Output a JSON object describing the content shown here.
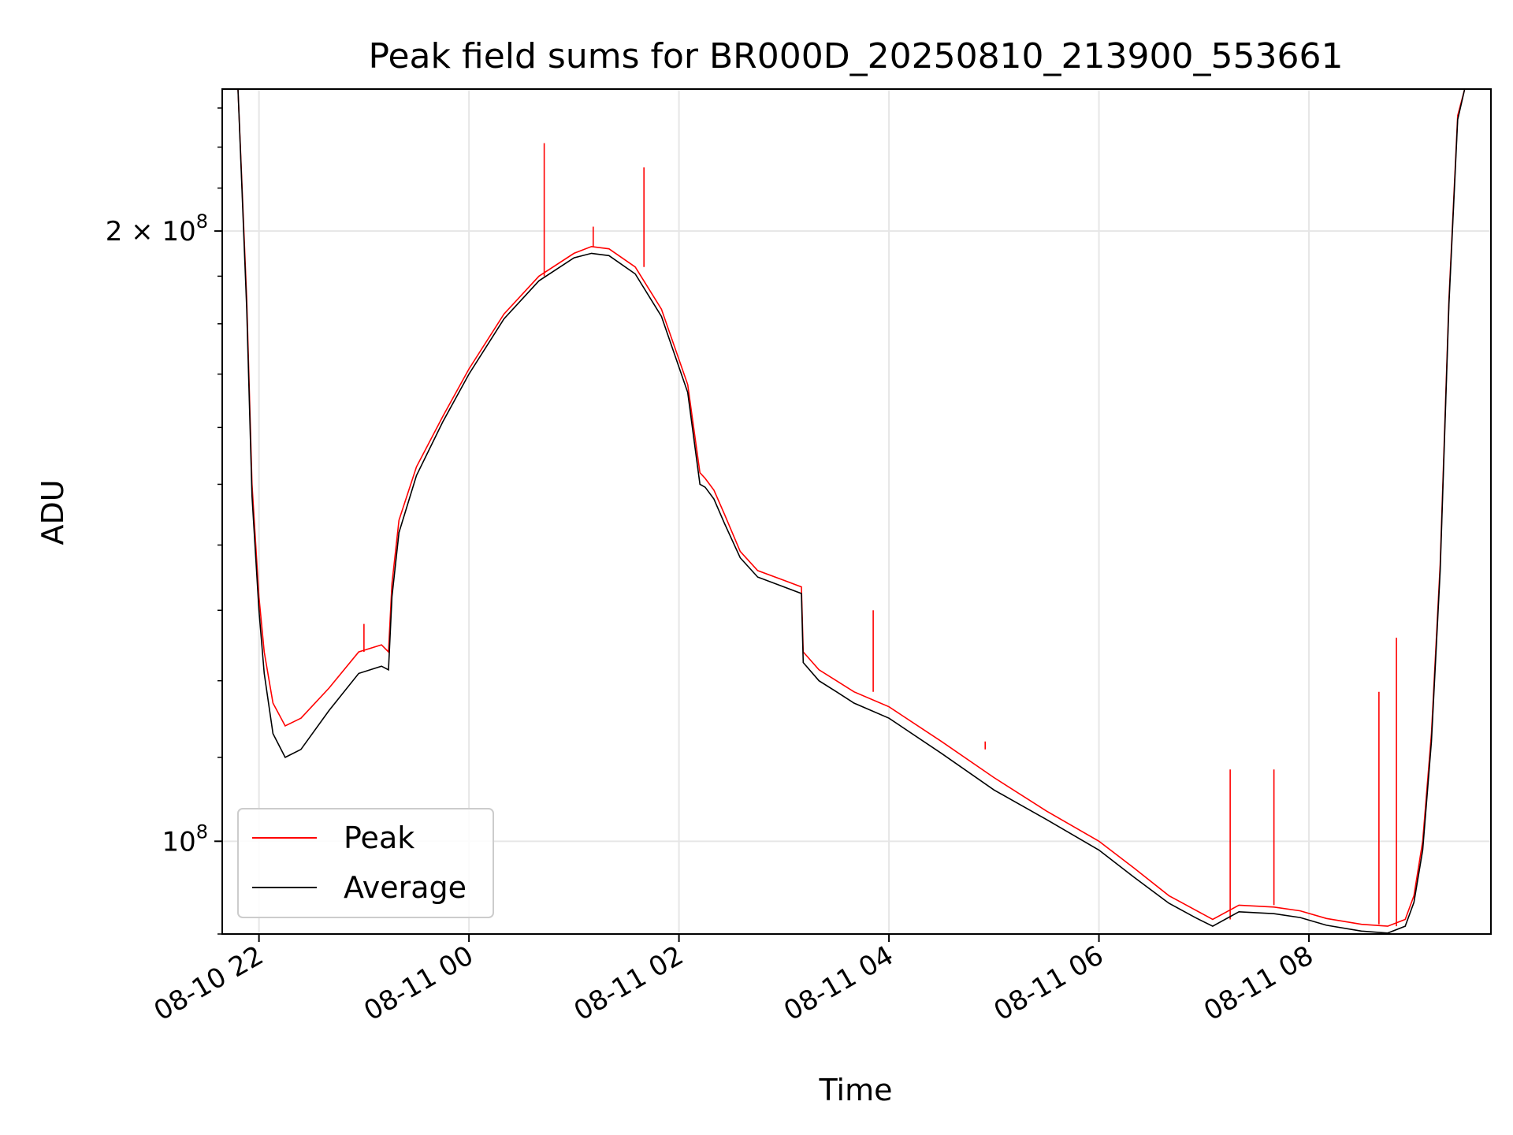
{
  "chart_data": {
    "type": "line",
    "title": "Peak field sums for BR000D_20250810_213900_553661",
    "xlabel": "Time",
    "ylabel": "ADU",
    "yscale": "log",
    "grid": true,
    "legend_position": "lower-left",
    "xlim": [
      "2025-08-10 21:39",
      "2025-08-11 09:44"
    ],
    "ylim": [
      90000000,
      235000000
    ],
    "x_ticks": [
      {
        "label": "08-10 22",
        "value": "2025-08-10 22:00"
      },
      {
        "label": "08-11 00",
        "value": "2025-08-11 00:00"
      },
      {
        "label": "08-11 02",
        "value": "2025-08-11 02:00"
      },
      {
        "label": "08-11 04",
        "value": "2025-08-11 04:00"
      },
      {
        "label": "08-11 06",
        "value": "2025-08-11 06:00"
      },
      {
        "label": "08-11 08",
        "value": "2025-08-11 08:00"
      }
    ],
    "y_ticks": [
      {
        "mantissa": "",
        "exponent": "8",
        "value": 100000000
      },
      {
        "mantissa": "2 × 10",
        "exponent": "8",
        "value": 200000000
      }
    ],
    "series": [
      {
        "name": "Peak",
        "color": "#ff0000",
        "x": [
          "2025-08-10 21:39",
          "2025-08-10 21:48",
          "2025-08-10 21:53",
          "2025-08-10 21:56",
          "2025-08-10 22:00",
          "2025-08-10 22:03",
          "2025-08-10 22:08",
          "2025-08-10 22:15",
          "2025-08-10 22:24",
          "2025-08-10 22:40",
          "2025-08-10 22:57",
          "2025-08-10 23:10",
          "2025-08-10 23:14",
          "2025-08-10 23:16",
          "2025-08-10 23:20",
          "2025-08-10 23:30",
          "2025-08-10 23:45",
          "2025-08-11 00:00",
          "2025-08-11 00:20",
          "2025-08-11 00:40",
          "2025-08-11 01:00",
          "2025-08-11 01:10",
          "2025-08-11 01:20",
          "2025-08-11 01:35",
          "2025-08-11 01:50",
          "2025-08-11 02:05",
          "2025-08-11 02:12",
          "2025-08-11 02:15",
          "2025-08-11 02:20",
          "2025-08-11 02:26",
          "2025-08-11 02:35",
          "2025-08-11 02:45",
          "2025-08-11 03:00",
          "2025-08-11 03:10",
          "2025-08-11 03:11",
          "2025-08-11 03:20",
          "2025-08-11 03:30",
          "2025-08-11 03:40",
          "2025-08-11 04:00",
          "2025-08-11 04:30",
          "2025-08-11 05:00",
          "2025-08-11 05:30",
          "2025-08-11 06:00",
          "2025-08-11 06:20",
          "2025-08-11 06:40",
          "2025-08-11 06:55",
          "2025-08-11 07:05",
          "2025-08-11 07:20",
          "2025-08-11 07:40",
          "2025-08-11 07:55",
          "2025-08-11 08:10",
          "2025-08-11 08:30",
          "2025-08-11 08:45",
          "2025-08-11 08:55",
          "2025-08-11 09:00",
          "2025-08-11 09:05",
          "2025-08-11 09:10",
          "2025-08-11 09:15",
          "2025-08-11 09:20",
          "2025-08-11 09:25",
          "2025-08-11 09:29",
          "2025-08-11 09:35",
          "2025-08-11 09:44"
        ],
        "y": [
          235000000,
          235000000,
          185000000,
          150000000,
          132000000,
          124000000,
          117000000,
          114000000,
          115000000,
          119000000,
          124000000,
          125000000,
          124000000,
          134000000,
          144000000,
          153000000,
          162000000,
          171000000,
          182000000,
          190000000,
          195000000,
          196500000,
          196000000,
          192000000,
          183000000,
          168000000,
          152000000,
          151000000,
          149000000,
          145000000,
          139000000,
          136000000,
          134500000,
          133500000,
          124000000,
          121500000,
          120000000,
          118500000,
          116500000,
          112000000,
          107500000,
          103500000,
          100000000,
          97000000,
          94000000,
          92500000,
          91500000,
          93000000,
          92800000,
          92400000,
          91600000,
          91000000,
          90800000,
          91500000,
          94000000,
          100000000,
          113000000,
          137000000,
          185000000,
          228000000,
          235000000,
          235000000,
          235000000
        ],
        "spikes": [
          {
            "x": "2025-08-11 00:43",
            "y": 221000000
          },
          {
            "x": "2025-08-11 01:11",
            "y": 201000000
          },
          {
            "x": "2025-08-11 01:40",
            "y": 215000000
          },
          {
            "x": "2025-08-10 23:00",
            "y": 128000000
          },
          {
            "x": "2025-08-11 03:51",
            "y": 130000000
          },
          {
            "x": "2025-08-11 04:55",
            "y": 111000000
          },
          {
            "x": "2025-08-11 07:15",
            "y": 108500000
          },
          {
            "x": "2025-08-11 07:40",
            "y": 108500000
          },
          {
            "x": "2025-08-11 08:40",
            "y": 118500000
          },
          {
            "x": "2025-08-11 08:50",
            "y": 126000000
          }
        ]
      },
      {
        "name": "Average",
        "color": "#000000",
        "x": [
          "2025-08-10 21:39",
          "2025-08-10 21:48",
          "2025-08-10 21:53",
          "2025-08-10 21:56",
          "2025-08-10 22:00",
          "2025-08-10 22:03",
          "2025-08-10 22:08",
          "2025-08-10 22:15",
          "2025-08-10 22:24",
          "2025-08-10 22:40",
          "2025-08-10 22:57",
          "2025-08-10 23:10",
          "2025-08-10 23:14",
          "2025-08-10 23:16",
          "2025-08-10 23:20",
          "2025-08-10 23:30",
          "2025-08-10 23:45",
          "2025-08-11 00:00",
          "2025-08-11 00:20",
          "2025-08-11 00:40",
          "2025-08-11 01:00",
          "2025-08-11 01:10",
          "2025-08-11 01:20",
          "2025-08-11 01:35",
          "2025-08-11 01:50",
          "2025-08-11 02:05",
          "2025-08-11 02:12",
          "2025-08-11 02:15",
          "2025-08-11 02:20",
          "2025-08-11 02:26",
          "2025-08-11 02:35",
          "2025-08-11 02:45",
          "2025-08-11 03:00",
          "2025-08-11 03:10",
          "2025-08-11 03:11",
          "2025-08-11 03:20",
          "2025-08-11 03:30",
          "2025-08-11 03:40",
          "2025-08-11 04:00",
          "2025-08-11 04:30",
          "2025-08-11 05:00",
          "2025-08-11 05:30",
          "2025-08-11 06:00",
          "2025-08-11 06:20",
          "2025-08-11 06:40",
          "2025-08-11 06:55",
          "2025-08-11 07:05",
          "2025-08-11 07:20",
          "2025-08-11 07:40",
          "2025-08-11 07:55",
          "2025-08-11 08:10",
          "2025-08-11 08:30",
          "2025-08-11 08:45",
          "2025-08-11 08:55",
          "2025-08-11 09:00",
          "2025-08-11 09:05",
          "2025-08-11 09:10",
          "2025-08-11 09:15",
          "2025-08-11 09:20",
          "2025-08-11 09:25",
          "2025-08-11 09:29",
          "2025-08-11 09:35",
          "2025-08-11 09:44"
        ],
        "y": [
          235000000,
          235000000,
          183000000,
          148000000,
          130000000,
          121000000,
          113000000,
          110000000,
          111000000,
          116000000,
          121000000,
          122000000,
          121500000,
          132000000,
          142000000,
          151500000,
          161000000,
          170000000,
          181000000,
          189000000,
          194000000,
          195000000,
          194500000,
          190500000,
          181500000,
          166500000,
          150000000,
          149500000,
          147500000,
          143500000,
          138000000,
          135000000,
          133500000,
          132500000,
          122500000,
          120000000,
          118500000,
          117000000,
          115000000,
          110500000,
          106000000,
          102500000,
          99000000,
          96000000,
          93200000,
          91700000,
          90800000,
          92300000,
          92100000,
          91700000,
          90900000,
          90300000,
          90100000,
          90800000,
          93300000,
          99000000,
          112000000,
          136000000,
          184000000,
          227000000,
          235000000,
          235000000,
          235000000
        ]
      }
    ]
  }
}
